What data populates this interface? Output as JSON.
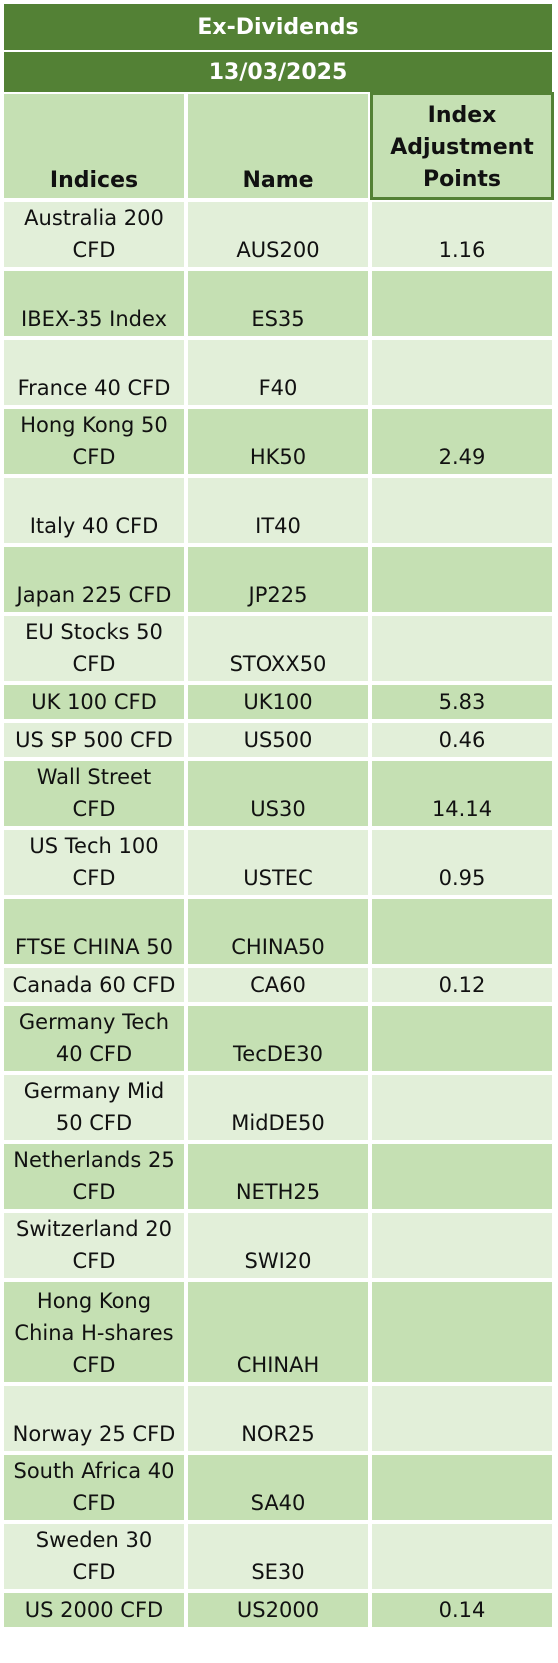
{
  "title": "Ex-Dividends",
  "date": "13/03/2025",
  "columns": [
    "Indices",
    "Name",
    "Index\nAdjustment\nPoints"
  ],
  "rows": [
    {
      "index": "Australia 200\nCFD",
      "name": "AUS200",
      "points": "1.16"
    },
    {
      "index": "IBEX-35 Index",
      "name": "ES35",
      "points": ""
    },
    {
      "index": "France 40 CFD",
      "name": "F40",
      "points": ""
    },
    {
      "index": "Hong Kong 50\nCFD",
      "name": "HK50",
      "points": "2.49"
    },
    {
      "index": "Italy 40 CFD",
      "name": "IT40",
      "points": ""
    },
    {
      "index": "Japan 225 CFD",
      "name": "JP225",
      "points": ""
    },
    {
      "index": "EU Stocks 50\nCFD",
      "name": "STOXX50",
      "points": ""
    },
    {
      "index": "UK 100 CFD",
      "name": "UK100",
      "points": "5.83"
    },
    {
      "index": "US SP 500 CFD",
      "name": "US500",
      "points": "0.46"
    },
    {
      "index": "Wall Street\nCFD",
      "name": "US30",
      "points": "14.14"
    },
    {
      "index": "US Tech 100\nCFD",
      "name": "USTEC",
      "points": "0.95"
    },
    {
      "index": "FTSE CHINA 50",
      "name": "CHINA50",
      "points": ""
    },
    {
      "index": "Canada 60 CFD",
      "name": "CA60",
      "points": "0.12"
    },
    {
      "index": "Germany Tech\n40 CFD",
      "name": "TecDE30",
      "points": ""
    },
    {
      "index": "Germany Mid\n50 CFD",
      "name": "MidDE50",
      "points": ""
    },
    {
      "index": "Netherlands 25\nCFD",
      "name": "NETH25",
      "points": ""
    },
    {
      "index": "Switzerland 20\nCFD",
      "name": "SWI20",
      "points": ""
    },
    {
      "index": "Hong Kong\nChina H-shares\nCFD",
      "name": "CHINAH",
      "points": ""
    },
    {
      "index": "Norway 25 CFD",
      "name": "NOR25",
      "points": ""
    },
    {
      "index": "South Africa 40\nCFD",
      "name": "SA40",
      "points": ""
    },
    {
      "index": "Sweden 30\nCFD",
      "name": "SE30",
      "points": ""
    },
    {
      "index": "US 2000 CFD",
      "name": "US2000",
      "points": "0.14"
    }
  ]
}
